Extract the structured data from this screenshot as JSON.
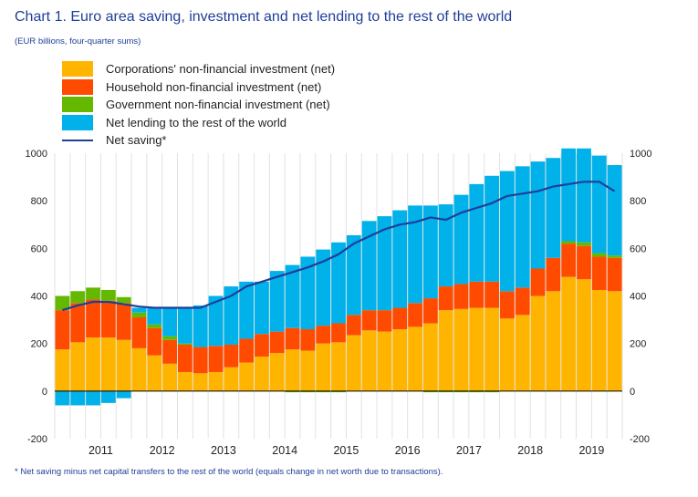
{
  "title": "Chart 1. Euro area saving, investment and net lending to the rest of the world",
  "subtitle": "(EUR billions, four-quarter sums)",
  "footnote": "* Net saving minus net capital transfers to the rest of the world (equals change in net worth due to transactions).",
  "chart_data": {
    "type": "bar",
    "stacked": true,
    "legend_position": "top-left",
    "grid": "vertical",
    "ylim": [
      -200,
      1000
    ],
    "y_ticks": [
      "-200",
      "0",
      "200",
      "400",
      "600",
      "800",
      "1000"
    ],
    "x_labels": [
      "2011",
      "2012",
      "2013",
      "2014",
      "2015",
      "2016",
      "2017",
      "2018",
      "2019"
    ],
    "categories": [
      "2010Q4",
      "2011Q1",
      "2011Q2",
      "2011Q3",
      "2011Q4",
      "2012Q1",
      "2012Q2",
      "2012Q3",
      "2012Q4",
      "2013Q1",
      "2013Q2",
      "2013Q3",
      "2013Q4",
      "2014Q1",
      "2014Q2",
      "2014Q3",
      "2014Q4",
      "2015Q1",
      "2015Q2",
      "2015Q3",
      "2015Q4",
      "2016Q1",
      "2016Q2",
      "2016Q3",
      "2016Q4",
      "2017Q1",
      "2017Q2",
      "2017Q3",
      "2017Q4",
      "2018Q1",
      "2018Q2",
      "2018Q3",
      "2018Q4",
      "2019Q1",
      "2019Q2",
      "2019Q3",
      "2019Q4"
    ],
    "colors": {
      "corporations": "#ffb400",
      "household": "#ff4b00",
      "government": "#65b800",
      "net_lending": "#00b1ea",
      "net_saving": "#1f3f98"
    },
    "series": [
      {
        "name": "Corporations' non-financial investment (net)",
        "key": "corporations",
        "values": [
          175,
          205,
          225,
          225,
          215,
          180,
          150,
          115,
          80,
          75,
          80,
          100,
          120,
          145,
          160,
          175,
          170,
          200,
          205,
          235,
          255,
          250,
          260,
          270,
          285,
          340,
          345,
          350,
          350,
          305,
          320,
          400,
          420,
          480,
          470,
          425,
          420
        ]
      },
      {
        "name": "Household non-financial investment (net)",
        "key": "household",
        "values": [
          165,
          165,
          160,
          155,
          155,
          130,
          115,
          100,
          115,
          110,
          110,
          95,
          100,
          95,
          90,
          90,
          90,
          75,
          80,
          85,
          85,
          90,
          90,
          100,
          105,
          100,
          105,
          110,
          110,
          115,
          115,
          115,
          140,
          140,
          140,
          140,
          140
        ]
      },
      {
        "name": "Government non-financial investment (net)",
        "key": "government",
        "values": [
          60,
          50,
          50,
          45,
          25,
          20,
          15,
          15,
          5,
          0,
          0,
          0,
          0,
          0,
          0,
          -5,
          -5,
          -5,
          -5,
          0,
          0,
          0,
          0,
          0,
          -5,
          -5,
          -5,
          -5,
          -5,
          0,
          0,
          0,
          0,
          10,
          15,
          15,
          10
        ]
      },
      {
        "name": "Net lending to the rest of the world",
        "key": "net_lending",
        "values": [
          -60,
          -60,
          -60,
          -50,
          -30,
          20,
          70,
          120,
          150,
          175,
          210,
          245,
          240,
          220,
          255,
          265,
          305,
          320,
          340,
          335,
          375,
          395,
          410,
          410,
          390,
          345,
          375,
          410,
          445,
          505,
          510,
          450,
          420,
          390,
          395,
          410,
          380
        ]
      }
    ],
    "line": {
      "name": "Net saving*",
      "key": "net_saving",
      "values": [
        340,
        360,
        375,
        375,
        365,
        355,
        350,
        350,
        350,
        350,
        375,
        400,
        440,
        460,
        480,
        500,
        520,
        545,
        575,
        620,
        650,
        680,
        700,
        710,
        730,
        720,
        750,
        770,
        790,
        820,
        830,
        840,
        860,
        870,
        880,
        880,
        840
      ]
    }
  }
}
